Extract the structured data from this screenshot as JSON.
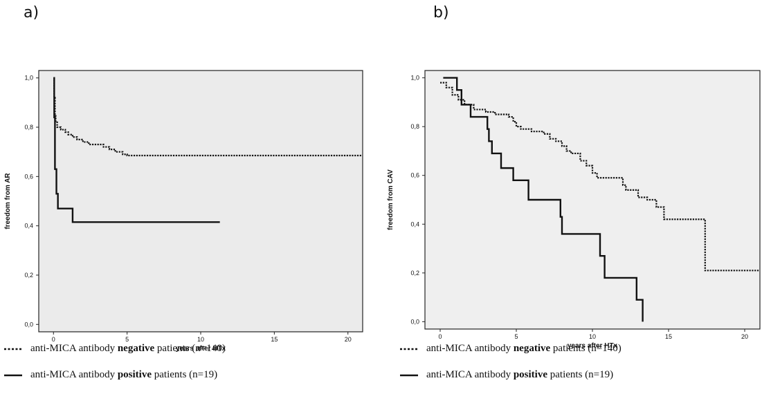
{
  "chart_data": [
    {
      "panel": "a)",
      "type": "line",
      "xlabel": "years after HTx",
      "ylabel": "freedom from AR",
      "xlim": [
        -1,
        21
      ],
      "ylim": [
        -0.03,
        1.03
      ],
      "xticks": [
        0,
        5,
        10,
        15,
        20
      ],
      "xtick_labels": [
        "0",
        "5",
        "10",
        "15",
        "20"
      ],
      "yticks": [
        0,
        0.2,
        0.4,
        0.6,
        0.8,
        1.0
      ],
      "ytick_labels": [
        "0,0",
        "0,2",
        "0,4",
        "0,6",
        "0,8",
        "1,0"
      ],
      "grid": false,
      "series": [
        {
          "style": "dotted",
          "step_points": [
            [
              0,
              1.0
            ],
            [
              0.05,
              0.92
            ],
            [
              0.1,
              0.85
            ],
            [
              0.15,
              0.82
            ],
            [
              0.25,
              0.8
            ],
            [
              0.5,
              0.79
            ],
            [
              0.8,
              0.78
            ],
            [
              1.0,
              0.77
            ],
            [
              1.3,
              0.76
            ],
            [
              1.6,
              0.75
            ],
            [
              2.0,
              0.74
            ],
            [
              2.4,
              0.73
            ],
            [
              3.0,
              0.73
            ],
            [
              3.4,
              0.72
            ],
            [
              3.8,
              0.71
            ],
            [
              4.2,
              0.7
            ],
            [
              4.7,
              0.69
            ],
            [
              5.0,
              0.685
            ],
            [
              21,
              0.685
            ]
          ]
        },
        {
          "style": "solid",
          "step_points": [
            [
              0,
              1.0
            ],
            [
              0.05,
              0.84
            ],
            [
              0.1,
              0.63
            ],
            [
              0.2,
              0.53
            ],
            [
              0.3,
              0.47
            ],
            [
              1.3,
              0.415
            ],
            [
              11.3,
              0.415
            ]
          ]
        }
      ]
    },
    {
      "panel": "b)",
      "type": "line",
      "xlabel": "years after HTx",
      "ylabel": "freedom from CAV",
      "xlim": [
        -1,
        21
      ],
      "ylim": [
        -0.03,
        1.03
      ],
      "xticks": [
        0,
        5,
        10,
        15,
        20
      ],
      "xtick_labels": [
        "0",
        "5",
        "10",
        "15",
        "20"
      ],
      "yticks": [
        0,
        0.2,
        0.4,
        0.6,
        0.8,
        1.0
      ],
      "ytick_labels": [
        "0,0",
        "0,2",
        "0,4",
        "0,6",
        "0,8",
        "1,0"
      ],
      "grid": false,
      "series": [
        {
          "style": "dotted",
          "step_points": [
            [
              0,
              0.98
            ],
            [
              0.4,
              0.96
            ],
            [
              0.8,
              0.93
            ],
            [
              1.2,
              0.91
            ],
            [
              1.6,
              0.89
            ],
            [
              2.2,
              0.87
            ],
            [
              3.0,
              0.86
            ],
            [
              3.6,
              0.85
            ],
            [
              4.5,
              0.84
            ],
            [
              4.8,
              0.82
            ],
            [
              5.0,
              0.8
            ],
            [
              5.3,
              0.79
            ],
            [
              6.0,
              0.78
            ],
            [
              6.8,
              0.77
            ],
            [
              7.2,
              0.75
            ],
            [
              7.6,
              0.74
            ],
            [
              8.0,
              0.72
            ],
            [
              8.3,
              0.7
            ],
            [
              8.6,
              0.69
            ],
            [
              9.2,
              0.66
            ],
            [
              9.6,
              0.64
            ],
            [
              10.0,
              0.61
            ],
            [
              10.3,
              0.59
            ],
            [
              12.0,
              0.56
            ],
            [
              12.2,
              0.54
            ],
            [
              13.0,
              0.51
            ],
            [
              13.6,
              0.5
            ],
            [
              14.2,
              0.47
            ],
            [
              14.7,
              0.42
            ],
            [
              17.4,
              0.21
            ],
            [
              21,
              0.21
            ]
          ]
        },
        {
          "style": "solid",
          "step_points": [
            [
              0.2,
              1.0
            ],
            [
              1.1,
              0.95
            ],
            [
              1.4,
              0.89
            ],
            [
              2.0,
              0.84
            ],
            [
              3.1,
              0.79
            ],
            [
              3.2,
              0.74
            ],
            [
              3.4,
              0.69
            ],
            [
              4.0,
              0.63
            ],
            [
              4.8,
              0.58
            ],
            [
              5.8,
              0.5
            ],
            [
              7.9,
              0.43
            ],
            [
              8.0,
              0.36
            ],
            [
              10.5,
              0.27
            ],
            [
              10.8,
              0.18
            ],
            [
              12.9,
              0.09
            ],
            [
              13.3,
              0.0
            ]
          ]
        }
      ]
    }
  ],
  "legend": [
    {
      "prefix": "anti-MICA antibody ",
      "bold": "negative",
      "suffix": " patients (n=140)",
      "style": "dotted"
    },
    {
      "prefix": "anti-MICA antibody ",
      "bold": "positive",
      "suffix": " patients (n=19)",
      "style": "solid"
    }
  ],
  "colors": {
    "plot_bg_a": "#ebebeb",
    "plot_bg_b": "#efefef",
    "line": "#111111"
  }
}
